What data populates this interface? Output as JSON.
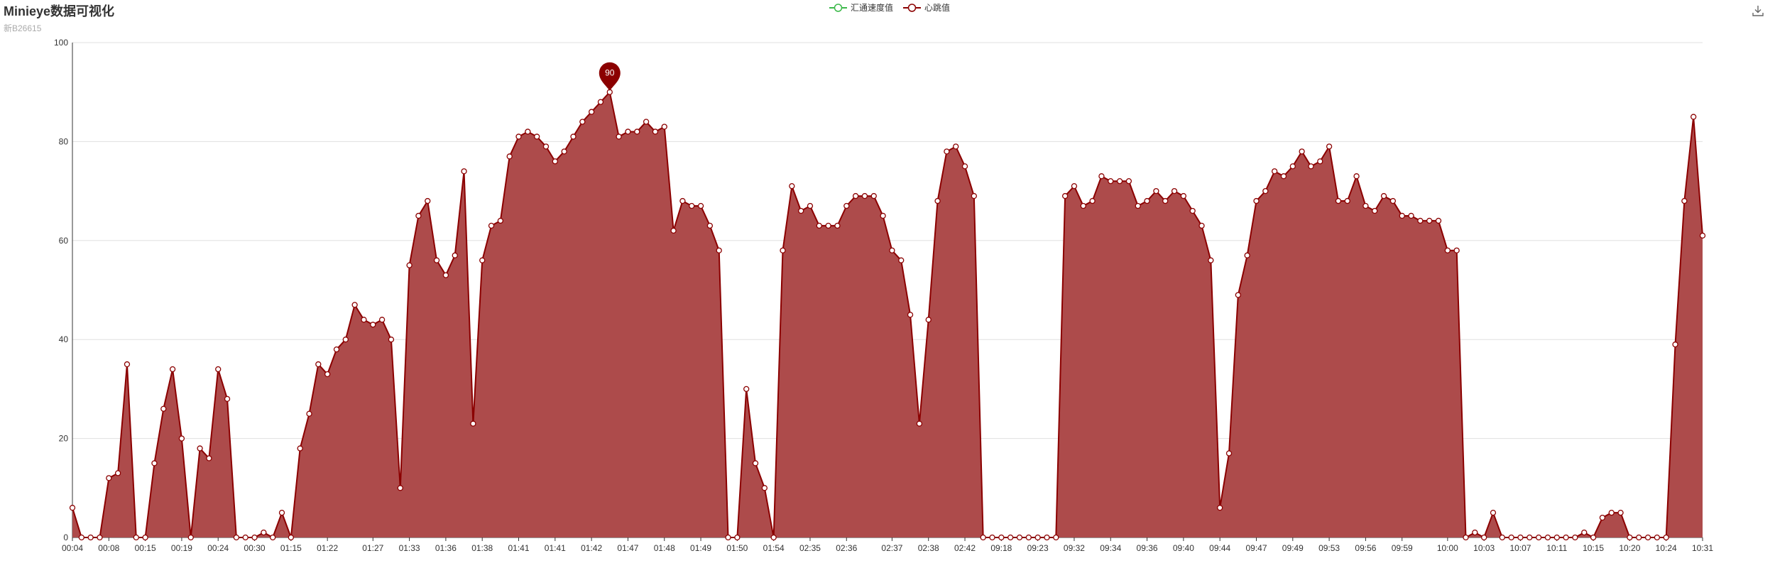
{
  "title": "Minieye数据可视化",
  "subtitle": "新B26615",
  "legend": {
    "items": [
      {
        "label": "汇通速度值",
        "color": "#3cb94a"
      },
      {
        "label": "心跳值",
        "color": "#8b0000"
      }
    ]
  },
  "toolbox": {
    "icon": "download-icon"
  },
  "chart_data": {
    "type": "area",
    "title": "Minieye数据可视化",
    "subtitle": "新B26615",
    "ylim": [
      0,
      100
    ],
    "yticks": [
      0,
      20,
      40,
      60,
      80,
      100
    ],
    "grid": true,
    "legend_position": "top-center",
    "x_tick_labels": [
      "00:04",
      "00:08",
      "00:15",
      "00:19",
      "00:24",
      "00:30",
      "01:15",
      "01:22",
      "01:27",
      "01:33",
      "01:36",
      "01:38",
      "01:41",
      "01:41",
      "01:42",
      "01:47",
      "01:48",
      "01:49",
      "01:50",
      "01:54",
      "02:35",
      "02:36",
      "02:37",
      "02:38",
      "02:42",
      "09:18",
      "09:23",
      "09:32",
      "09:34",
      "09:36",
      "09:40",
      "09:44",
      "09:47",
      "09:49",
      "09:53",
      "09:56",
      "09:59",
      "10:00",
      "10:03",
      "10:07",
      "10:11",
      "10:15",
      "10:20",
      "10:24",
      "10:31"
    ],
    "series": [
      {
        "name": "心跳值",
        "color": "#8b0000",
        "fill": "#ad4b4b",
        "values": [
          6,
          0,
          0,
          0,
          12,
          13,
          35,
          0,
          0,
          15,
          26,
          34,
          20,
          0,
          18,
          16,
          34,
          28,
          0,
          0,
          0,
          1,
          0,
          5,
          0,
          18,
          25,
          35,
          33,
          38,
          40,
          47,
          44,
          43,
          44,
          40,
          10,
          55,
          65,
          68,
          56,
          53,
          57,
          74,
          23,
          56,
          63,
          64,
          77,
          81,
          82,
          81,
          79,
          76,
          78,
          81,
          84,
          86,
          88,
          90,
          81,
          82,
          82,
          84,
          82,
          83,
          62,
          68,
          67,
          67,
          63,
          58,
          0,
          0,
          30,
          15,
          10,
          0,
          58,
          71,
          66,
          67,
          63,
          63,
          63,
          67,
          69,
          69,
          69,
          65,
          58,
          56,
          45,
          23,
          44,
          68,
          78,
          79,
          75,
          69,
          0,
          0,
          0,
          0,
          0,
          0,
          0,
          0,
          0,
          69,
          71,
          67,
          68,
          73,
          72,
          72,
          72,
          67,
          68,
          70,
          68,
          70,
          69,
          66,
          63,
          56,
          6,
          17,
          49,
          57,
          68,
          70,
          74,
          73,
          75,
          78,
          75,
          76,
          79,
          68,
          68,
          73,
          67,
          66,
          69,
          68,
          65,
          65,
          64,
          64,
          64,
          58,
          58,
          0,
          1,
          0,
          5,
          0,
          0,
          0,
          0,
          0,
          0,
          0,
          0,
          0,
          1,
          0,
          4,
          5,
          5,
          0,
          0,
          0,
          0,
          0,
          39,
          68,
          85,
          61
        ]
      },
      {
        "name": "汇通速度值",
        "color": "#3cb94a",
        "values": []
      }
    ],
    "markPoint": {
      "label": "90",
      "value": 90,
      "index": 59
    }
  }
}
